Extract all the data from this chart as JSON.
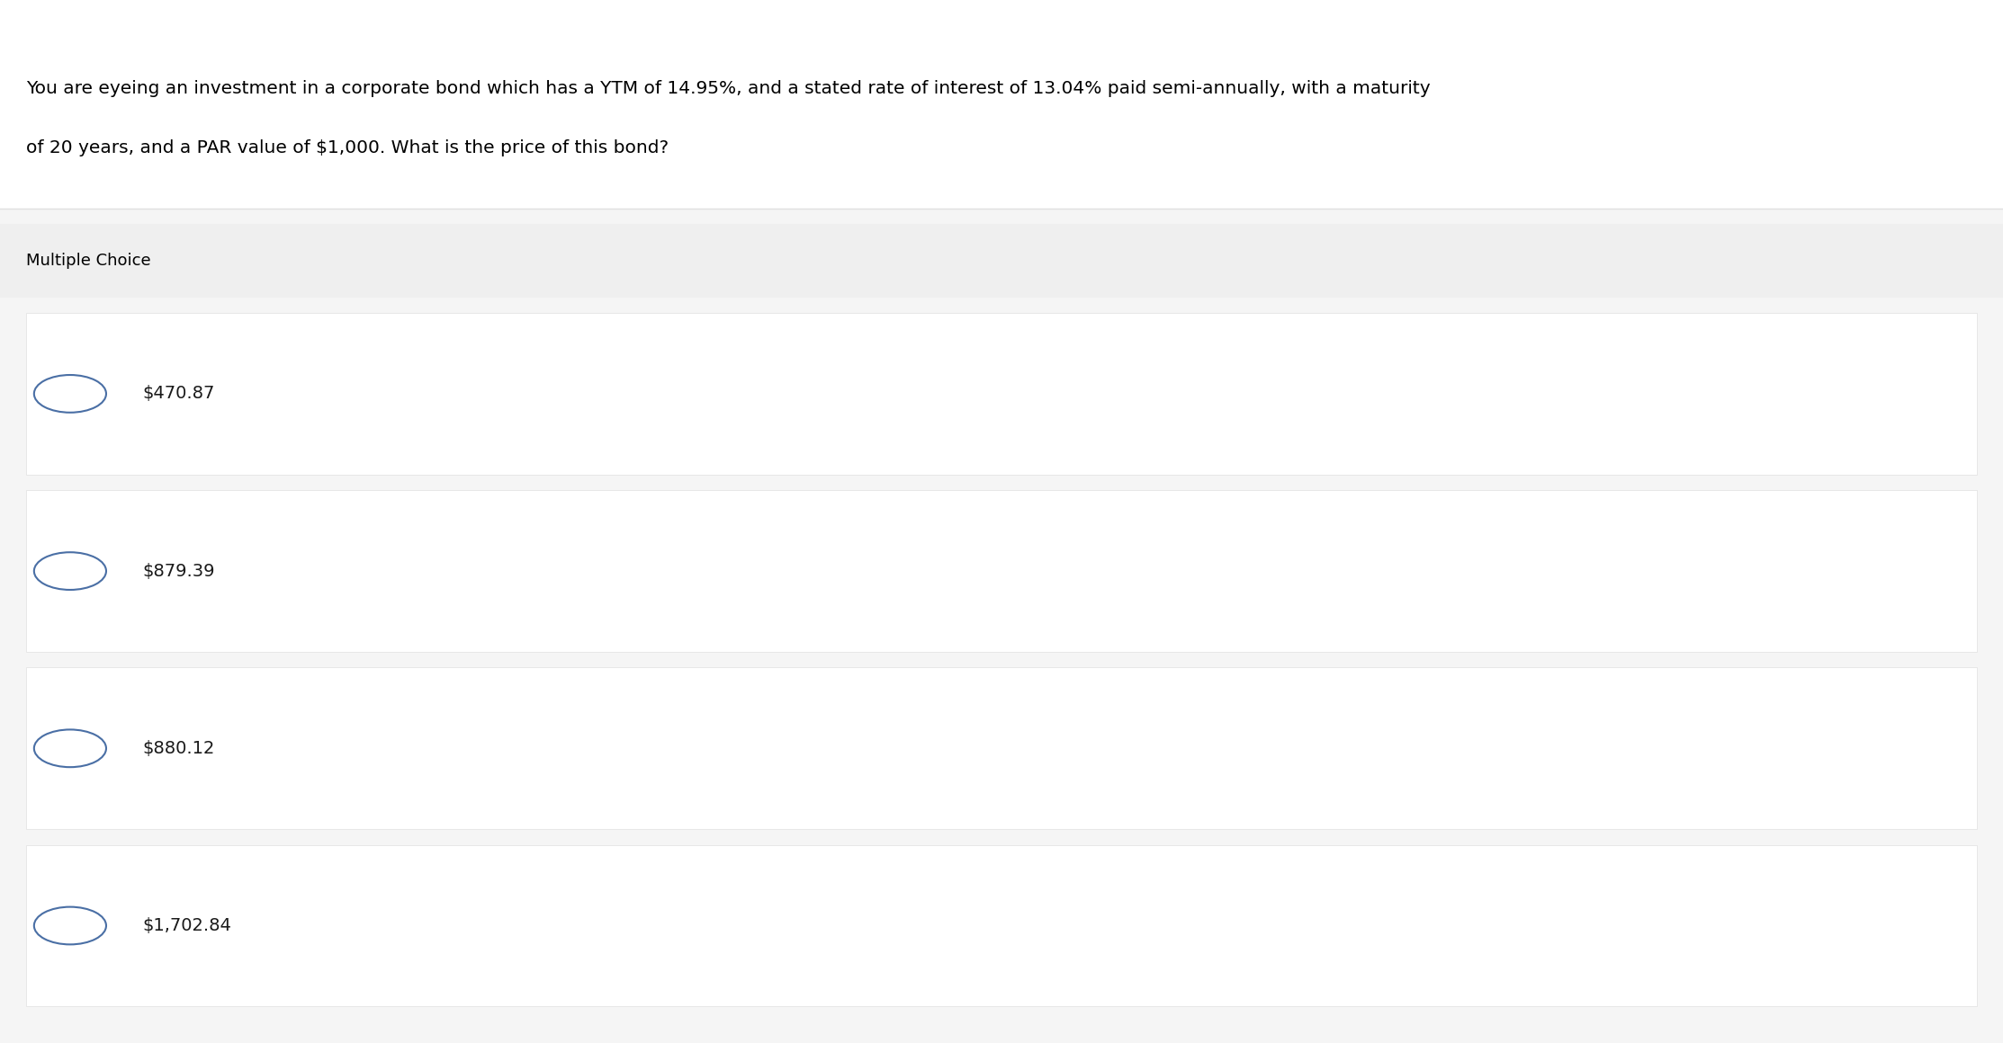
{
  "question_line1": "You are eyeing an investment in a corporate bond which has a YTM of 14.95%, and a stated rate of interest of 13.04% paid semi-annually, with a maturity",
  "question_line2": "of 20 years, and a PAR value of $1,000. What is the price of this bond?",
  "section_label": "Multiple Choice",
  "choices": [
    "$470.87",
    "$879.39",
    "$880.12",
    "$1,702.84"
  ],
  "bg_color": "#f5f5f5",
  "box_bg": "#ffffff",
  "header_bg": "#efefef",
  "text_color": "#000000",
  "choice_text_color": "#1a1a1a",
  "circle_edge_color": "#4a6fa5",
  "divider_color": "#e0e0e0",
  "question_fontsize": 14.5,
  "section_fontsize": 13,
  "choice_fontsize": 14,
  "question_bg": "#ffffff"
}
